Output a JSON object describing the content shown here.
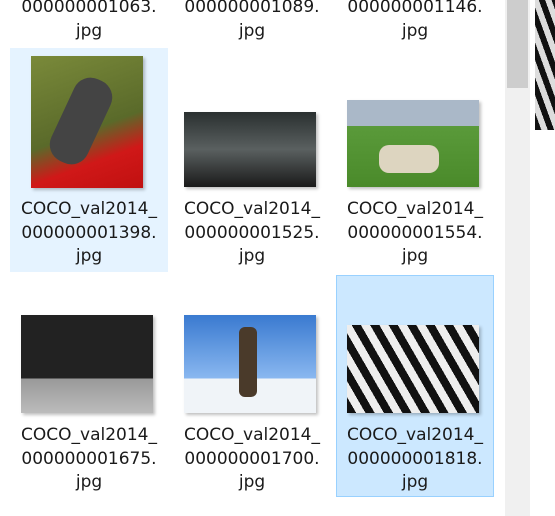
{
  "items": [
    {
      "lines": [
        "000000001063.",
        "jpg"
      ]
    },
    {
      "lines": [
        "000000001089.",
        "jpg"
      ]
    },
    {
      "lines": [
        "000000001146.",
        "jpg"
      ]
    },
    {
      "lines": [
        "COCO_val2014_",
        "000000001398.",
        "jpg"
      ]
    },
    {
      "lines": [
        "COCO_val2014_",
        "000000001525.",
        "jpg"
      ]
    },
    {
      "lines": [
        "COCO_val2014_",
        "000000001554.",
        "jpg"
      ]
    },
    {
      "lines": [
        "COCO_val2014_",
        "000000001675.",
        "jpg"
      ]
    },
    {
      "lines": [
        "COCO_val2014_",
        "000000001700.",
        "jpg"
      ]
    },
    {
      "lines": [
        "COCO_val2014_",
        "000000001818.",
        "jpg"
      ]
    }
  ]
}
